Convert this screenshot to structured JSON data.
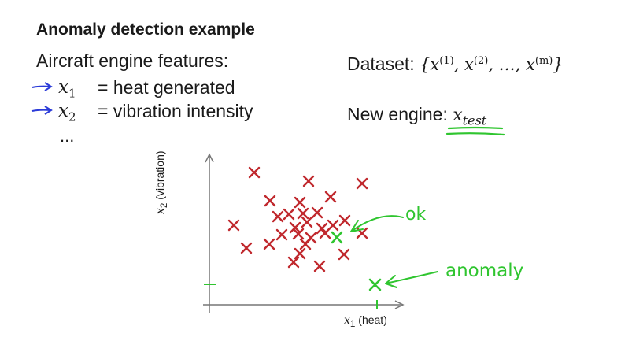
{
  "title": "Anomaly detection example",
  "features": {
    "heading": "Aircraft engine features:",
    "items": [
      {
        "var": "x",
        "sub": "1",
        "desc": "= heat generated"
      },
      {
        "var": "x",
        "sub": "2",
        "desc": "= vibration intensity"
      }
    ],
    "ellipsis": "..."
  },
  "dataset": {
    "label": "Dataset:",
    "open": "{",
    "x": "x",
    "sup1": "(1)",
    "sup2": "(2)",
    "dots": "…",
    "supm": "(m)",
    "close": "}"
  },
  "new_engine": {
    "label": "New engine:",
    "var": "x",
    "sub": "test"
  },
  "plot": {
    "y_axis_label": {
      "var": "x",
      "sub": "2",
      "text": "(vibration)"
    },
    "x_axis_label": {
      "var": "x",
      "sub": "1",
      "text": "(heat)"
    },
    "annotations": {
      "ok": "ok",
      "anomaly": "anomaly"
    }
  },
  "colors": {
    "marker": "#c0282d",
    "pen_green": "#2fc52f",
    "pen_blue": "#2b3bd8",
    "axis": "#777777"
  }
}
